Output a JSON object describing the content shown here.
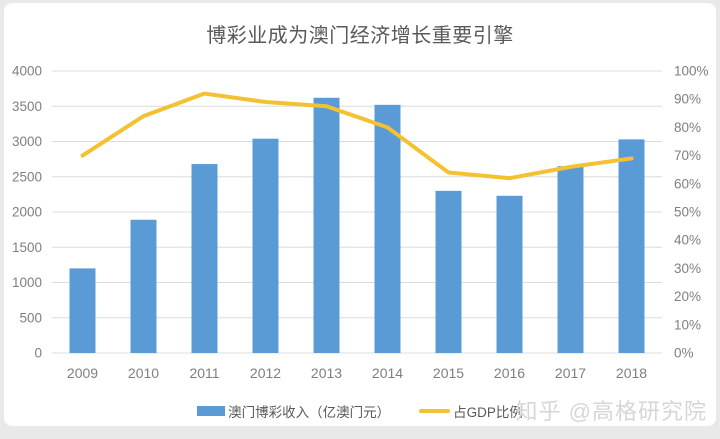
{
  "title": "博彩业成为澳门经济增长重要引擎",
  "watermark": "知乎 @高格研究院",
  "legend": {
    "revenue_label": "澳门博彩收入（亿澳门元）",
    "gdp_label": "占GDP比例"
  },
  "colors": {
    "bar": "#5B9BD5",
    "line": "#F3C131",
    "grid": "#DCDCDC",
    "axis_text": "#7F7F7F",
    "title_text": "#595959",
    "watermark_text": "#D6D6D6",
    "frame": "#E9E9E9",
    "card": "#FFFFFF"
  },
  "chart_data": {
    "type": "combo",
    "subtypes": [
      "bar",
      "line"
    ],
    "title": "博彩业成为澳门经济增长重要引擎",
    "categories": [
      "2009",
      "2010",
      "2011",
      "2012",
      "2013",
      "2014",
      "2015",
      "2016",
      "2017",
      "2018"
    ],
    "series": [
      {
        "name": "澳门博彩收入（亿澳门元）",
        "type": "bar",
        "axis": "left",
        "color": "#5B9BD5",
        "values": [
          1200,
          1890,
          2680,
          3040,
          3620,
          3520,
          2300,
          2230,
          2650,
          3030
        ]
      },
      {
        "name": "占GDP比例",
        "type": "line",
        "axis": "right",
        "color": "#F3C131",
        "unit": "%",
        "values": [
          70,
          84,
          92,
          89,
          87.5,
          80,
          64,
          62,
          66,
          69
        ]
      }
    ],
    "left_axis": {
      "min": 0,
      "max": 4000,
      "step": 500,
      "ticks": [
        "0",
        "500",
        "1000",
        "1500",
        "2000",
        "2500",
        "3000",
        "3500",
        "4000"
      ]
    },
    "right_axis": {
      "min": 0,
      "max": 100,
      "step": 10,
      "ticks": [
        "0%",
        "10%",
        "20%",
        "30%",
        "40%",
        "50%",
        "60%",
        "70%",
        "80%",
        "90%",
        "100%"
      ]
    },
    "grid": "horizontal gridlines at left-axis 500 steps",
    "legend_position": "bottom"
  }
}
